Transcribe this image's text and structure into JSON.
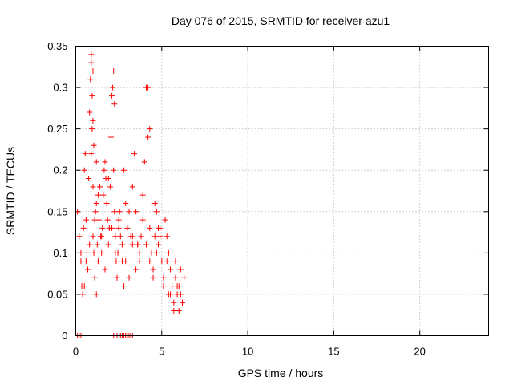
{
  "chart_data": {
    "type": "scatter",
    "title": "Day 076 of 2015, SRMTID for receiver azu1",
    "xlabel": "GPS time / hours",
    "ylabel": "SRMTID / TECUs",
    "xlim": [
      0,
      24
    ],
    "ylim": [
      0,
      0.35
    ],
    "xticks": [
      0,
      5,
      10,
      15,
      20
    ],
    "xtick_labels": [
      "0",
      "5",
      "10",
      "15",
      "20"
    ],
    "yticks": [
      0,
      0.05,
      0.1,
      0.15,
      0.2,
      0.25,
      0.3,
      0.35
    ],
    "ytick_labels": [
      "0",
      "0.05",
      "0.1",
      "0.15",
      "0.2",
      "0.25",
      "0.3",
      "0.35"
    ],
    "grid": true,
    "marker": "+",
    "color": "#ff0000",
    "series": [
      {
        "name": "SRMTID",
        "x": [
          0.1,
          0.2,
          0.3,
          0.35,
          0.4,
          0.45,
          0.5,
          0.55,
          0.6,
          0.65,
          0.7,
          0.75,
          0.8,
          0.85,
          0.9,
          0.95,
          1.0,
          1.0,
          1.05,
          1.1,
          1.15,
          1.2,
          1.2,
          1.25,
          1.3,
          1.35,
          1.4,
          1.45,
          1.5,
          1.55,
          1.6,
          1.65,
          1.7,
          1.75,
          1.8,
          1.85,
          1.9,
          1.95,
          2.0,
          2.05,
          2.1,
          2.15,
          2.2,
          2.25,
          2.3,
          2.35,
          2.4,
          2.45,
          2.5,
          2.55,
          2.6,
          2.7,
          2.8,
          2.9,
          3.0,
          3.1,
          3.2,
          3.3,
          3.4,
          3.5,
          3.6,
          3.7,
          3.8,
          3.9,
          4.0,
          4.1,
          4.2,
          4.3,
          4.4,
          4.5,
          4.6,
          4.7,
          4.8,
          4.9,
          5.0,
          5.1,
          5.2,
          5.3,
          5.4,
          5.5,
          5.6,
          5.7,
          5.8,
          5.9,
          6.0,
          6.1,
          6.2,
          6.3,
          0.3,
          0.5,
          0.6,
          0.8,
          0.9,
          1.0,
          1.1,
          1.3,
          1.5,
          1.7,
          1.9,
          2.1,
          2.3,
          2.5,
          2.7,
          2.9,
          3.1,
          3.3,
          3.5,
          3.7,
          3.9,
          4.1,
          4.3,
          4.5,
          4.7,
          4.9,
          5.1,
          5.3,
          5.5,
          5.7,
          5.9,
          6.1,
          0.9,
          1.0,
          0.95,
          1.05,
          2.2,
          2.25,
          4.2,
          4.3,
          1.2,
          2.8,
          3.6,
          5.8,
          6.2,
          4.8,
          0.7,
          2.4,
          3.3,
          4.6,
          5.4,
          6.0,
          0.1,
          0.2,
          0.3,
          2.2,
          2.4,
          2.6,
          2.7,
          2.8,
          2.9,
          3.0,
          3.1,
          3.2,
          3.3
        ],
        "y": [
          0.15,
          0.12,
          0.09,
          0.06,
          0.05,
          0.13,
          0.2,
          0.22,
          0.14,
          0.1,
          0.08,
          0.19,
          0.27,
          0.31,
          0.34,
          0.25,
          0.18,
          0.12,
          0.1,
          0.07,
          0.15,
          0.21,
          0.16,
          0.11,
          0.09,
          0.14,
          0.18,
          0.12,
          0.1,
          0.13,
          0.17,
          0.2,
          0.21,
          0.19,
          0.16,
          0.14,
          0.11,
          0.13,
          0.18,
          0.24,
          0.29,
          0.3,
          0.2,
          0.15,
          0.12,
          0.09,
          0.07,
          0.1,
          0.13,
          0.15,
          0.12,
          0.09,
          0.2,
          0.16,
          0.13,
          0.07,
          0.12,
          0.18,
          0.22,
          0.15,
          0.11,
          0.09,
          0.12,
          0.17,
          0.21,
          0.3,
          0.24,
          0.13,
          0.1,
          0.08,
          0.12,
          0.15,
          0.11,
          0.13,
          0.09,
          0.07,
          0.14,
          0.12,
          0.05,
          0.08,
          0.06,
          0.04,
          0.07,
          0.05,
          0.06,
          0.08,
          0.04,
          0.07,
          0.1,
          0.06,
          0.09,
          0.11,
          0.22,
          0.26,
          0.14,
          0.17,
          0.12,
          0.08,
          0.19,
          0.13,
          0.1,
          0.14,
          0.11,
          0.09,
          0.15,
          0.12,
          0.08,
          0.1,
          0.14,
          0.11,
          0.09,
          0.07,
          0.1,
          0.12,
          0.06,
          0.09,
          0.05,
          0.03,
          0.06,
          0.05,
          0.33,
          0.32,
          0.29,
          0.23,
          0.32,
          0.28,
          0.3,
          0.25,
          0.05,
          0.06,
          0.11,
          0.09,
          0.04,
          0.13,
          0.08,
          0.07,
          0.11,
          0.16,
          0.1,
          0.03,
          0.0,
          0.0,
          0.0,
          0.0,
          0.0,
          0.0,
          0.0,
          0.0,
          0.0,
          0.0,
          0.0,
          0.0,
          0.0
        ]
      }
    ]
  }
}
